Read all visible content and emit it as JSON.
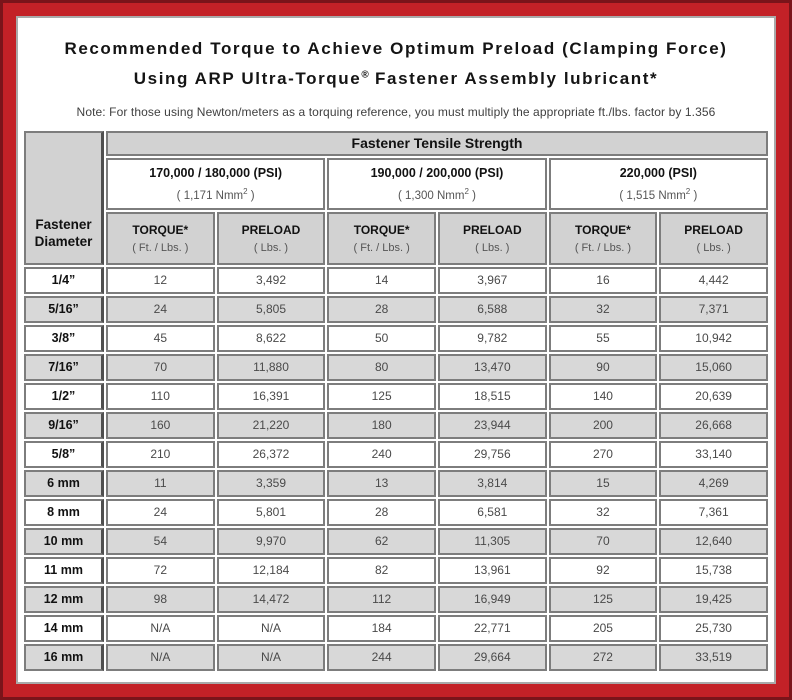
{
  "header": {
    "title_line1": "Recommended Torque to Achieve Optimum Preload (Clamping Force)",
    "title_line2_pre": "Using ARP Ultra-Torque",
    "title_line2_sup": "®",
    "title_line2_post": " Fastener Assembly lubricant*",
    "note": "Note: For those using Newton/meters as a torquing reference, you must multiply the appropriate ft./lbs. factor by 1.356"
  },
  "table": {
    "corner_line1": "Fastener",
    "corner_line2": "Diameter",
    "tensile_header": "Fastener Tensile Strength",
    "groups": [
      {
        "psi": "170,000 / 180,000 (PSI)",
        "nmm_pre": "( 1,171 Nmm",
        "nmm_sup": "2",
        "nmm_close": " )"
      },
      {
        "psi": "190,000 / 200,000 (PSI)",
        "nmm_pre": "( 1,300 Nmm",
        "nmm_sup": "2",
        "nmm_close": " )"
      },
      {
        "psi": "220,000 (PSI)",
        "nmm_pre": "( 1,515 Nmm",
        "nmm_sup": "2",
        "nmm_close": " )"
      }
    ],
    "col_headers": {
      "torque_label": "TORQUE*",
      "torque_unit": "( Ft. / Lbs. )",
      "preload_label": "PRELOAD",
      "preload_unit": "( Lbs. )"
    },
    "rows": [
      {
        "diameter": "1/4”",
        "values": [
          "12",
          "3,492",
          "14",
          "3,967",
          "16",
          "4,442"
        ]
      },
      {
        "diameter": "5/16”",
        "values": [
          "24",
          "5,805",
          "28",
          "6,588",
          "32",
          "7,371"
        ]
      },
      {
        "diameter": "3/8”",
        "values": [
          "45",
          "8,622",
          "50",
          "9,782",
          "55",
          "10,942"
        ]
      },
      {
        "diameter": "7/16”",
        "values": [
          "70",
          "11,880",
          "80",
          "13,470",
          "90",
          "15,060"
        ]
      },
      {
        "diameter": "1/2”",
        "values": [
          "110",
          "16,391",
          "125",
          "18,515",
          "140",
          "20,639"
        ]
      },
      {
        "diameter": "9/16”",
        "values": [
          "160",
          "21,220",
          "180",
          "23,944",
          "200",
          "26,668"
        ]
      },
      {
        "diameter": "5/8”",
        "values": [
          "210",
          "26,372",
          "240",
          "29,756",
          "270",
          "33,140"
        ]
      },
      {
        "diameter": "6 mm",
        "values": [
          "11",
          "3,359",
          "13",
          "3,814",
          "15",
          "4,269"
        ]
      },
      {
        "diameter": "8 mm",
        "values": [
          "24",
          "5,801",
          "28",
          "6,581",
          "32",
          "7,361"
        ]
      },
      {
        "diameter": "10 mm",
        "values": [
          "54",
          "9,970",
          "62",
          "11,305",
          "70",
          "12,640"
        ]
      },
      {
        "diameter": "11 mm",
        "values": [
          "72",
          "12,184",
          "82",
          "13,961",
          "92",
          "15,738"
        ]
      },
      {
        "diameter": "12 mm",
        "values": [
          "98",
          "14,472",
          "112",
          "16,949",
          "125",
          "19,425"
        ]
      },
      {
        "diameter": "14 mm",
        "values": [
          "N/A",
          "N/A",
          "184",
          "22,771",
          "205",
          "25,730"
        ]
      },
      {
        "diameter": "16 mm",
        "values": [
          "N/A",
          "N/A",
          "244",
          "29,664",
          "272",
          "33,519"
        ]
      }
    ]
  },
  "colors": {
    "outer_frame": "#7a141a",
    "red_frame": "#c32127",
    "inner_line": "#a9a9a9",
    "header_gray": "#d2d2d2",
    "alt_row_gray": "#d8d8d8",
    "cell_border": "#7d7d7d",
    "diameter_divider": "#4f4f4f",
    "text_dark": "#111111",
    "text_value_gray": "#4a4a4a"
  }
}
